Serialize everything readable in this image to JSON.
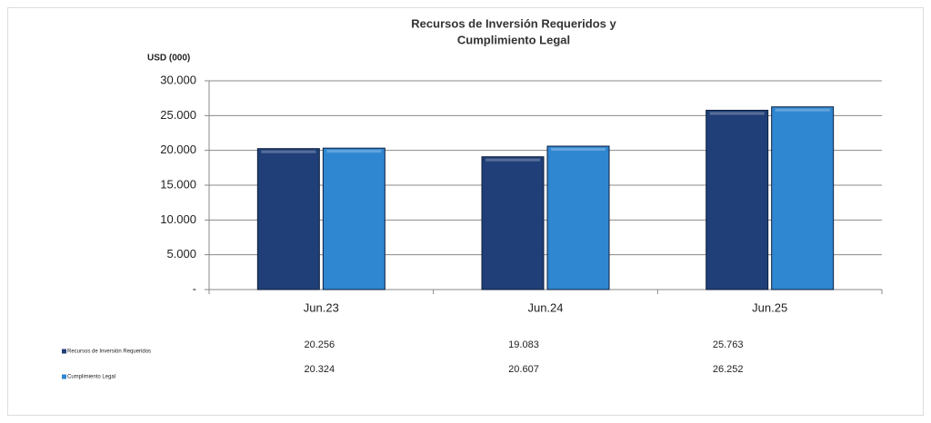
{
  "chart_data": {
    "type": "bar",
    "title": [
      "Recursos de Inversión Requeridos y",
      "Cumplimiento Legal"
    ],
    "y_label": "USD (000)",
    "categories": [
      "Jun.23",
      "Jun.24",
      "Jun.25"
    ],
    "series": [
      {
        "name": "Recursos de Inversión Requeridos",
        "color": "#203f78",
        "values": [
          20256,
          19083,
          25763
        ],
        "value_labels": [
          "20.256",
          "19.083",
          "25.763"
        ]
      },
      {
        "name": "Cumplimiento Legal",
        "color": "#2f86d1",
        "values": [
          20324,
          20607,
          26252
        ],
        "value_labels": [
          "20.324",
          "20.607",
          "26.252"
        ]
      }
    ],
    "ylim": [
      0,
      30000
    ],
    "yticks": [
      {
        "value": 0,
        "label": "-"
      },
      {
        "value": 5000,
        "label": "5.000"
      },
      {
        "value": 10000,
        "label": "10.000"
      },
      {
        "value": 15000,
        "label": "15.000"
      },
      {
        "value": 20000,
        "label": "20.000"
      },
      {
        "value": 25000,
        "label": "25.000"
      },
      {
        "value": 30000,
        "label": "30.000"
      }
    ],
    "grid": true
  }
}
